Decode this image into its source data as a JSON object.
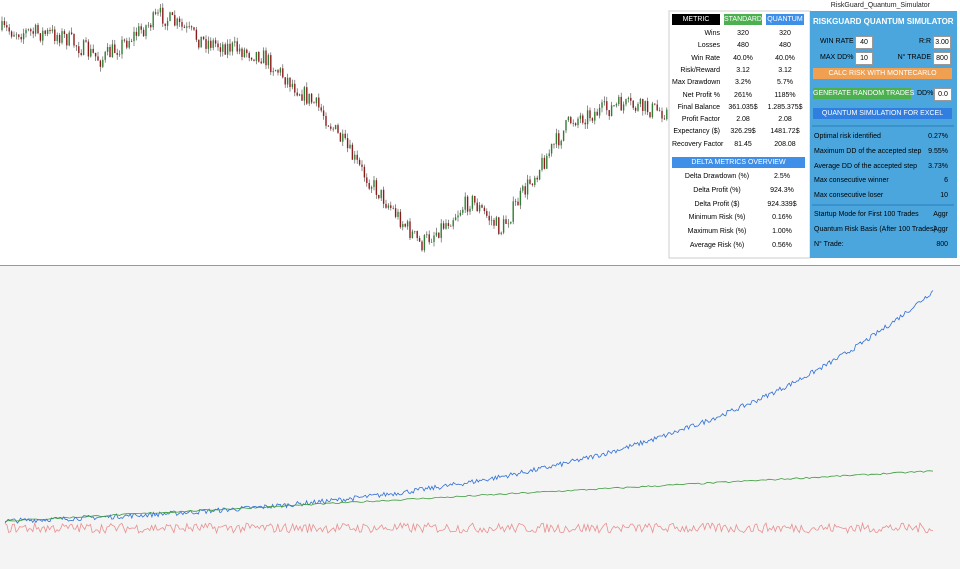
{
  "header": {
    "label": "RiskGuard_Quantum_Simulator"
  },
  "metrics": {
    "columns": [
      "METRIC",
      "STANDARD",
      "QUANTUM"
    ],
    "rows": [
      [
        "Wins",
        "320",
        "320"
      ],
      [
        "Losses",
        "480",
        "480"
      ],
      [
        "Win Rate",
        "40.0%",
        "40.0%"
      ],
      [
        "Risk/Reward",
        "3.12",
        "3.12"
      ],
      [
        "Max Drawdown",
        "3.2%",
        "5.7%"
      ],
      [
        "Net Profit %",
        "261%",
        "1185%"
      ],
      [
        "Final Balance",
        "361.035$",
        "1.285.375$"
      ],
      [
        "Profit Factor",
        "2.08",
        "2.08"
      ],
      [
        "Expectancy ($)",
        "326.29$",
        "1481.72$"
      ],
      [
        "Recovery Factor",
        "81.45",
        "208.08"
      ]
    ]
  },
  "delta": {
    "title": "DELTA METRICS OVERVIEW",
    "rows": [
      [
        "Delta Drawdown (%)",
        "2.5%"
      ],
      [
        "Delta Profit (%)",
        "924.3%"
      ],
      [
        "Delta Profit ($)",
        "924.339$"
      ],
      [
        "Minimum Risk (%)",
        "0.16%"
      ],
      [
        "Maximum Risk (%)",
        "1.00%"
      ],
      [
        "Average Risk (%)",
        "0.56%"
      ]
    ]
  },
  "panel": {
    "title": "RISKGUARD QUANTUM SIMULATOR",
    "inputs": [
      {
        "label": "WIN RATE",
        "value": "40"
      },
      {
        "label": "R:R",
        "value": "3.00"
      },
      {
        "label": "MAX DD%",
        "value": "10"
      },
      {
        "label": "N° TRADE",
        "value": "800"
      }
    ],
    "buttons": [
      "CALC RISK WITH MONTECARLO",
      "GENERATE RANDOM TRADES",
      "QUANTUM SIMULATION FOR EXCEL"
    ],
    "dd": {
      "label": "DD%",
      "value": "0.0"
    },
    "results": [
      [
        "Optimal risk identified",
        "0.27%"
      ],
      [
        "Maximum DD of the accepted step",
        "9.55%"
      ],
      [
        "Average DD of the accepted step",
        "3.73%"
      ],
      [
        "Max consecutive winner",
        "6"
      ],
      [
        "Max consecutive loser",
        "10"
      ]
    ],
    "modes": [
      [
        "Startup Mode for First 100 Trades",
        "Aggr"
      ],
      [
        "Quantum Risk Basis (After 100 Trades)",
        "Aggr"
      ],
      [
        "N° Trade:",
        "800"
      ]
    ]
  }
}
